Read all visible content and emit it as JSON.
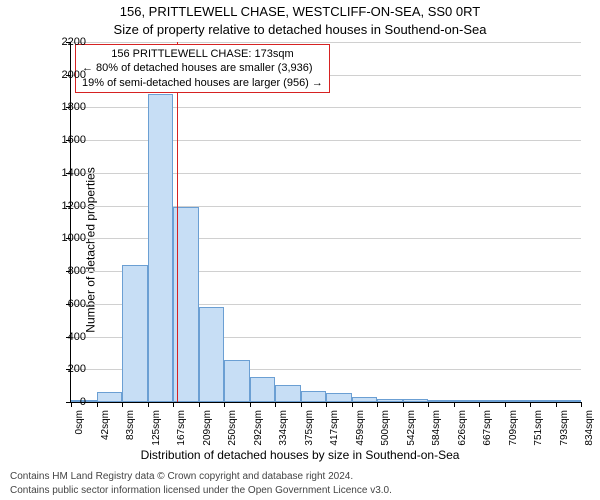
{
  "title_main": "156, PRITTLEWELL CHASE, WESTCLIFF-ON-SEA, SS0 0RT",
  "title_sub": "Size of property relative to detached houses in Southend-on-Sea",
  "ylabel": "Number of detached properties",
  "xlabel_bottom": "Distribution of detached houses by size in Southend-on-Sea",
  "footer_line1": "Contains HM Land Registry data © Crown copyright and database right 2024.",
  "footer_line2": "Contains public sector information licensed under the Open Government Licence v3.0.",
  "chart": {
    "type": "bar",
    "ylim": [
      0,
      2200
    ],
    "yticks": [
      0,
      200,
      400,
      600,
      800,
      1000,
      1200,
      1400,
      1600,
      1800,
      2000,
      2200
    ],
    "xtick_labels": [
      "0sqm",
      "42sqm",
      "83sqm",
      "125sqm",
      "167sqm",
      "209sqm",
      "250sqm",
      "292sqm",
      "334sqm",
      "375sqm",
      "417sqm",
      "459sqm",
      "500sqm",
      "542sqm",
      "584sqm",
      "626sqm",
      "667sqm",
      "709sqm",
      "751sqm",
      "793sqm",
      "834sqm"
    ],
    "bar_values": [
      10,
      60,
      840,
      1880,
      1190,
      580,
      255,
      150,
      105,
      65,
      55,
      30,
      20,
      18,
      15,
      12,
      8,
      6,
      5,
      3
    ],
    "bar_fill": "#c7def5",
    "bar_border": "#6b9fd3",
    "grid_color": "#d0d0d0",
    "refline_x_sqm": 173,
    "refline_color": "#d62222",
    "annotation": {
      "line1": "156 PRITTLEWELL CHASE: 173sqm",
      "line2": "← 80% of detached houses are smaller (3,936)",
      "line3": "19% of semi-detached houses are larger (956) →"
    },
    "background_color": "#ffffff",
    "font_family": "Arial",
    "title_fontsize": 13,
    "label_fontsize": 12,
    "tick_fontsize": 11
  }
}
